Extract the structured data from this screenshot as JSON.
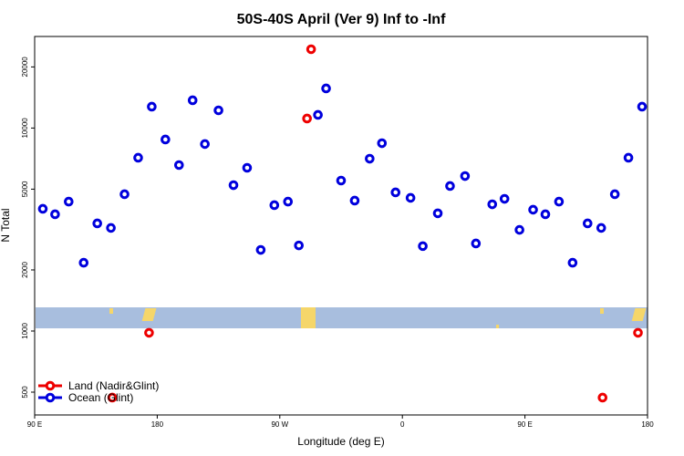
{
  "chart_data": {
    "type": "scatter",
    "title": "50S-40S April (Ver 9)   Inf to -Inf",
    "x_label": "Longitude (deg E)",
    "y_label": "N Total",
    "log_y": true,
    "legend": "bottom-left",
    "xlim": [
      90,
      540
    ],
    "ylim": [
      386,
      28250
    ],
    "xticks": [
      {
        "value": 90,
        "label": "90 E"
      },
      {
        "value": 180,
        "label": "180"
      },
      {
        "value": 270,
        "label": "90 W"
      },
      {
        "value": 360,
        "label": "0"
      },
      {
        "value": 450,
        "label": "90 E"
      },
      {
        "value": 540,
        "label": "180"
      }
    ],
    "yticks": [
      500,
      1000,
      2000,
      5000,
      10000,
      20000
    ],
    "series": [
      {
        "name": "Land (Nadir&Glint)",
        "color": "#ee0000",
        "x": [
          174,
          147,
          293,
          290,
          507,
          533
        ],
        "values": [
          980,
          470,
          24440,
          11140,
          470,
          980
        ]
      },
      {
        "name": "Ocean (Glint)",
        "color": "#0000dd",
        "x": [
          96,
          105,
          115,
          126,
          136,
          146,
          156,
          166,
          176,
          186,
          196,
          206,
          215,
          225,
          236,
          246,
          256,
          266,
          276,
          284,
          298,
          304,
          315,
          325,
          336,
          345,
          355,
          366,
          375,
          386,
          395,
          406,
          414,
          426,
          435,
          446,
          456,
          465,
          475,
          485,
          496,
          506,
          516,
          526,
          536
        ],
        "values": [
          4000,
          3760,
          4340,
          2170,
          3390,
          3220,
          4720,
          7140,
          12740,
          8780,
          6570,
          13700,
          8340,
          12220,
          5230,
          6370,
          2510,
          4170,
          4340,
          2640,
          11610,
          15670,
          5510,
          4390,
          7060,
          8420,
          4820,
          4530,
          2620,
          3800,
          5180,
          5800,
          2700,
          4210,
          4480,
          3150,
          3960,
          3760,
          4340,
          2170,
          3390,
          3220,
          4720,
          7140,
          12740
        ]
      }
    ]
  }
}
